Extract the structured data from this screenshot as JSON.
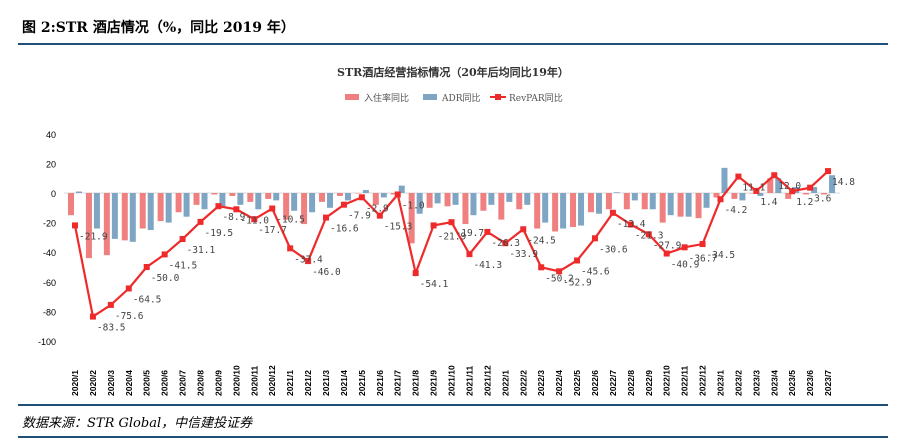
{
  "header": {
    "title": "图 2:STR 酒店情况（%，同比 2019 年）"
  },
  "footer": {
    "source": "数据来源：STR Global，中信建投证券"
  },
  "colors": {
    "rule": "#1f4e79",
    "occupancy": "#f08080",
    "adr": "#7ea6c4",
    "revpar": "#ee2a2a"
  },
  "chart_data": {
    "type": "bar+line",
    "title": "STR酒店经营指标情况（20年后均同比19年）",
    "ylim": [
      -100,
      40
    ],
    "yticks": [
      40,
      20,
      0,
      -20,
      -40,
      -60,
      -80,
      -100
    ],
    "legend_position": "top",
    "categories": [
      "2020/1",
      "2020/2",
      "2020/3",
      "2020/4",
      "2020/5",
      "2020/6",
      "2020/7",
      "2020/8",
      "2020/9",
      "2020/10",
      "2020/11",
      "2020/12",
      "2021/1",
      "2021/2",
      "2021/3",
      "2021/4",
      "2021/5",
      "2021/6",
      "2021/7",
      "2021/8",
      "2021/9",
      "2021/10",
      "2021/11",
      "2021/12",
      "2022/1",
      "2022/2",
      "2022/3",
      "2022/4",
      "2022/5",
      "2022/6",
      "2022/7",
      "2022/8",
      "2022/9",
      "2022/10",
      "2022/11",
      "2022/12",
      "2023/1",
      "2023/2",
      "2023/3",
      "2023/4",
      "2023/5",
      "2023/6",
      "2023/7"
    ],
    "series": [
      {
        "name": "入住率同比",
        "type": "bar",
        "values": [
          -15,
          -44,
          -42,
          -32,
          -24,
          -19,
          -13,
          -8,
          -1,
          -2,
          -6,
          -4,
          -18,
          -21,
          -6,
          -2,
          0,
          -8,
          -1,
          -34,
          -10,
          -9,
          -21,
          -12,
          -18,
          -11,
          -24,
          -26,
          -23,
          -13,
          -11,
          -11,
          -11,
          -20,
          -16,
          -17,
          -3,
          -4,
          0,
          10,
          -4,
          -1,
          -1
        ]
      },
      {
        "name": "ADR同比",
        "type": "bar",
        "values": [
          1,
          -24,
          -31,
          -33,
          -25,
          -20,
          -16,
          -11,
          -9,
          -8,
          -11,
          -5,
          -12,
          -13,
          -10,
          -5,
          2,
          -3,
          5,
          -14,
          -7,
          -8,
          -15,
          -8,
          -6,
          -8,
          -20,
          -24,
          -22,
          -14,
          0.5,
          -5,
          -11,
          -15,
          -16,
          -10,
          17,
          -5,
          -2,
          10,
          4,
          4,
          12
        ]
      },
      {
        "name": "RevPAR同比",
        "type": "line",
        "values": [
          -21.9,
          -83.5,
          -75.6,
          -64.5,
          -50.0,
          -41.5,
          -31.1,
          -19.5,
          -8.9,
          -11.0,
          -17.7,
          -10.5,
          -37.4,
          -46.0,
          -16.6,
          -7.9,
          -2.9,
          -15.3,
          -1.0,
          -54.1,
          -21.9,
          -19.7,
          -41.3,
          -26.3,
          -33.9,
          -24.5,
          -50.2,
          -52.9,
          -45.6,
          -30.6,
          -13.4,
          -21.3,
          -27.9,
          -40.9,
          -36.7,
          -34.5,
          -4.2,
          11.1,
          1.4,
          12.0,
          1.2,
          3.6,
          14.8
        ]
      }
    ]
  }
}
